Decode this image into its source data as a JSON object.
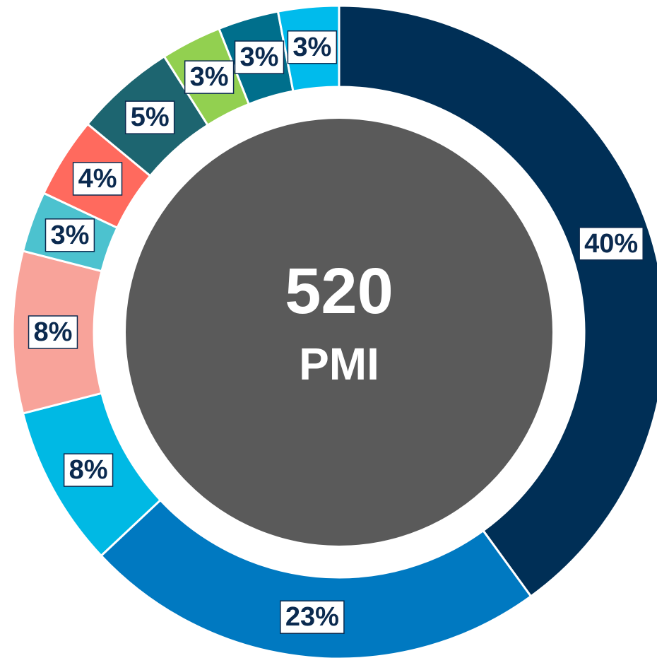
{
  "chart_data": {
    "type": "donut",
    "values": [
      40,
      23,
      8,
      8,
      3,
      4,
      5,
      3,
      3,
      3
    ],
    "value_labels": [
      "40%",
      "23%",
      "8%",
      "8%",
      "3%",
      "4%",
      "5%",
      "3%",
      "3%",
      "3%"
    ],
    "colors": [
      "#002f56",
      "#0079c1",
      "#00b9e4",
      "#f8a39a",
      "#4cc2cf",
      "#ff6a5e",
      "#1d6570",
      "#92d050",
      "#006f8c",
      "#00bbec"
    ],
    "center_value": 520,
    "center_label": "PMI"
  }
}
